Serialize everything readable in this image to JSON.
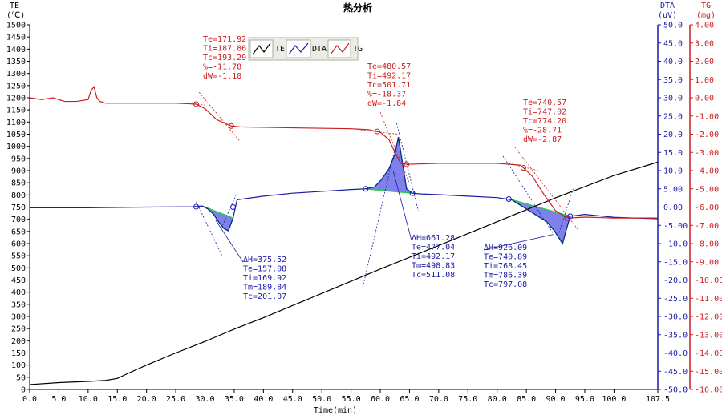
{
  "chart_data": {
    "type": "line",
    "title": "热分析",
    "xlabel": "Time(min)",
    "xlim": [
      0,
      107.5
    ],
    "x_ticks": [
      0,
      5,
      10,
      15,
      20,
      25,
      30,
      35,
      40,
      45,
      50,
      55,
      60,
      65,
      70,
      75,
      80,
      85,
      90,
      95,
      100,
      107.5
    ],
    "x_tick_labels": [
      "0.0",
      "5.0",
      "10.0",
      "15.0",
      "20.0",
      "25.0",
      "30.0",
      "35.0",
      "40.0",
      "45.0",
      "50.0",
      "55.0",
      "60.0",
      "65.0",
      "70.0",
      "75.0",
      "80.0",
      "85.0",
      "90.0",
      "95.0",
      "100.0",
      "107.5"
    ],
    "axes": {
      "te": {
        "label": "TE",
        "unit": "(℃)",
        "ylim": [
          0,
          1500
        ],
        "color": "#000000",
        "ticks": [
          0,
          50,
          100,
          150,
          200,
          250,
          300,
          350,
          400,
          450,
          500,
          550,
          600,
          650,
          700,
          750,
          800,
          850,
          900,
          950,
          1000,
          1050,
          1100,
          1150,
          1200,
          1250,
          1300,
          1350,
          1400,
          1450,
          1500
        ],
        "tick_labels": [
          "0",
          "50",
          "100",
          "150",
          "200",
          "250",
          "300",
          "350",
          "400",
          "450",
          "500",
          "550",
          "600",
          "650",
          "700",
          "750",
          "800",
          "850",
          "900",
          "950",
          "1000",
          "1050",
          "1100",
          "1150",
          "1200",
          "1250",
          "1300",
          "1350",
          "1400",
          "1450",
          "1500"
        ]
      },
      "dta": {
        "label": "DTA",
        "unit": "(uV)",
        "ylim": [
          -50,
          50
        ],
        "color": "#1a1aa8",
        "ticks": [
          50,
          45,
          40,
          35,
          30,
          25,
          20,
          15,
          10,
          5,
          0,
          -5,
          -10,
          -15,
          -20,
          -25,
          -30,
          -35,
          -40,
          -45,
          -50
        ],
        "tick_labels": [
          "50.0",
          "45.0",
          "40.0",
          "35.0",
          "30.0",
          "25.0",
          "20.0",
          "15.0",
          "10.0",
          "5.00",
          "0.00",
          "-5.00",
          "-10.0",
          "-15.0",
          "-20.0",
          "-25.0",
          "-30.0",
          "-35.0",
          "-40.0",
          "-45.0",
          "-50.0"
        ]
      },
      "tg": {
        "label": "TG",
        "unit": "(mg)",
        "ylim": [
          -16,
          4
        ],
        "color": "#cc1e1e",
        "ticks": [
          4,
          3,
          2,
          1,
          0,
          -1,
          -2,
          -3,
          -4,
          -5,
          -6,
          -7,
          -8,
          -9,
          -10,
          -11,
          -12,
          -13,
          -14,
          -15,
          -16
        ],
        "tick_labels": [
          "4.00",
          "3.00",
          "2.00",
          "1.00",
          "0.00",
          "-1.00",
          "-2.00",
          "-3.00",
          "-4.00",
          "-5.00",
          "-6.00",
          "-7.00",
          "-8.00",
          "-9.00",
          "-10.00",
          "-11.00",
          "-12.00",
          "-13.00",
          "-14.00",
          "-15.00",
          "-16.00"
        ]
      }
    },
    "legend": {
      "placement": "top-center",
      "entries": [
        "TE",
        "DTA",
        "TG"
      ]
    },
    "grid": false,
    "series": [
      {
        "name": "TE",
        "axis": "te",
        "color": "#000000",
        "x": [
          0,
          5,
          10,
          13,
          15,
          17,
          20,
          25,
          30,
          35,
          40,
          50,
          60,
          70,
          80,
          90,
          100,
          107.5
        ],
        "y": [
          20,
          28,
          33,
          37,
          45,
          68,
          100,
          150,
          197,
          248,
          295,
          395,
          495,
          592,
          690,
          788,
          880,
          935
        ]
      },
      {
        "name": "DTA",
        "axis": "dta",
        "color": "#1a1aa8",
        "x": [
          0,
          10,
          20,
          28,
          29.5,
          30.5,
          31.5,
          32.3,
          33.2,
          34,
          34.8,
          35.5,
          40,
          45,
          50,
          55,
          57.5,
          59,
          60.2,
          61.5,
          62.5,
          63.1,
          63.8,
          64.5,
          65.5,
          67,
          70,
          75,
          80,
          82.5,
          84,
          85.5,
          87,
          88.5,
          89.8,
          90.6,
          91.2,
          91.7,
          92.5,
          95,
          100,
          107.5
        ],
        "y": [
          -0.2,
          -0.2,
          0.0,
          0.1,
          0.3,
          -0.5,
          -2.0,
          -4.0,
          -5.8,
          -6.5,
          -3.0,
          2.0,
          3.0,
          3.8,
          4.3,
          4.8,
          5.0,
          5.5,
          7.5,
          10.5,
          14.5,
          19.2,
          12.0,
          5.0,
          3.8,
          3.6,
          3.4,
          3.0,
          2.6,
          2.0,
          0.5,
          -1.0,
          -2.5,
          -4.0,
          -6.5,
          -8.5,
          -10.0,
          -7.0,
          -2.5,
          -2.0,
          -2.8,
          -3.2
        ]
      },
      {
        "name": "TG",
        "axis": "tg",
        "color": "#cc1e1e",
        "x": [
          0,
          2,
          4,
          6,
          8,
          10,
          10.5,
          11,
          11.5,
          12,
          13,
          20,
          25,
          28.5,
          30,
          32,
          34.5,
          36,
          45,
          55,
          58,
          60,
          61.5,
          62.5,
          63.5,
          64.5,
          65,
          70,
          80,
          84,
          86,
          88,
          90,
          91.5,
          92.5,
          95,
          100,
          107.5
        ],
        "y": [
          0.0,
          -0.1,
          0.0,
          -0.2,
          -0.2,
          -0.1,
          0.4,
          0.6,
          0.0,
          -0.2,
          -0.3,
          -0.3,
          -0.3,
          -0.35,
          -0.6,
          -1.2,
          -1.55,
          -1.6,
          -1.65,
          -1.7,
          -1.75,
          -1.9,
          -2.3,
          -3.0,
          -3.6,
          -3.65,
          -3.65,
          -3.6,
          -3.6,
          -3.7,
          -4.3,
          -5.3,
          -6.2,
          -6.5,
          -6.6,
          -6.55,
          -6.6,
          -6.6
        ]
      }
    ],
    "peaks": [
      {
        "lines": [
          "ΔH=375.52",
          "Te=157.08",
          "Ti=169.92",
          "Tm=189.84",
          "Tc=201.07"
        ]
      },
      {
        "lines": [
          "ΔH=661.28",
          "Te=477.04",
          "Ti=492.17",
          "Tm=498.83",
          "Tc=511.08"
        ]
      },
      {
        "lines": [
          "ΔH=926.09",
          "Te=740.89",
          "Ti=768.45",
          "Tm=786.39",
          "Tc=797.08"
        ]
      }
    ],
    "steps": [
      {
        "lines": [
          "Te=171.92",
          "Ti=187.86",
          "Tc=193.29",
          "%=-11.78",
          "dW=-1.18"
        ]
      },
      {
        "lines": [
          "Te=480.57",
          "Ti=492.17",
          "Tc=501.71",
          "%=-18.37",
          "dW=-1.84"
        ]
      },
      {
        "lines": [
          "Te=740.57",
          "Ti=747.02",
          "Tc=774.20",
          "%=-28.71",
          "dW=-2.87"
        ]
      }
    ]
  }
}
